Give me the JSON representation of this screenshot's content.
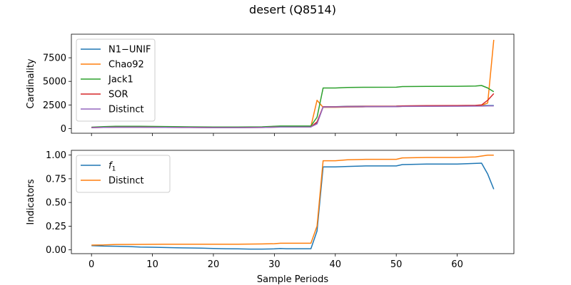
{
  "figure": {
    "title": "desert (Q8514)",
    "xlabel": "Sample Periods"
  },
  "chart_data": [
    {
      "type": "line",
      "ylabel": "Cardinality",
      "xlim": [
        -3.3,
        69.3
      ],
      "ylim": [
        -500,
        10000
      ],
      "xticks": [
        0,
        10,
        20,
        30,
        40,
        50,
        60
      ],
      "yticks": [
        0,
        2500,
        5000,
        7500
      ],
      "ytick_labels": [
        "0",
        "2500",
        "5000",
        "7500"
      ],
      "show_xtick_labels": false,
      "legend_position": "upper-left",
      "series": [
        {
          "name": "N1−UNIF",
          "color": "#1f77b4",
          "x": [
            0,
            2,
            4,
            8,
            12,
            16,
            20,
            24,
            28,
            31,
            36,
            37,
            38,
            40,
            42,
            45,
            50,
            51,
            55,
            60,
            64,
            65,
            66
          ],
          "y": [
            110,
            135,
            150,
            150,
            140,
            120,
            110,
            110,
            120,
            175,
            180,
            600,
            2300,
            2320,
            2350,
            2360,
            2370,
            2390,
            2400,
            2420,
            2440,
            2440,
            2440
          ]
        },
        {
          "name": "Chao92",
          "color": "#ff7f0e",
          "x": [
            0,
            2,
            4,
            8,
            12,
            16,
            20,
            24,
            28,
            31,
            36,
            37,
            38,
            40,
            42,
            45,
            50,
            51,
            55,
            60,
            63,
            64,
            65,
            66
          ],
          "y": [
            120,
            150,
            175,
            175,
            165,
            140,
            130,
            130,
            140,
            215,
            220,
            3000,
            2250,
            2250,
            2280,
            2300,
            2320,
            2350,
            2370,
            2390,
            2400,
            2450,
            2700,
            9400
          ]
        },
        {
          "name": "Jack1",
          "color": "#2ca02c",
          "x": [
            0,
            2,
            4,
            8,
            12,
            16,
            20,
            24,
            28,
            31,
            36,
            37,
            38,
            40,
            42,
            45,
            50,
            51,
            55,
            60,
            63,
            64,
            65,
            66
          ],
          "y": [
            140,
            200,
            230,
            230,
            210,
            180,
            160,
            160,
            180,
            260,
            270,
            1200,
            4300,
            4300,
            4350,
            4370,
            4380,
            4450,
            4470,
            4480,
            4500,
            4560,
            4300,
            3900
          ]
        },
        {
          "name": "SOR",
          "color": "#d62728",
          "x": [
            0,
            2,
            4,
            8,
            12,
            16,
            20,
            24,
            28,
            31,
            36,
            37,
            38,
            40,
            42,
            45,
            50,
            51,
            55,
            60,
            63,
            64,
            65,
            66
          ],
          "y": [
            100,
            130,
            140,
            140,
            130,
            110,
            100,
            100,
            110,
            165,
            170,
            700,
            2300,
            2300,
            2330,
            2350,
            2360,
            2400,
            2420,
            2440,
            2450,
            2500,
            3000,
            3700
          ]
        },
        {
          "name": "Distinct",
          "color": "#9467bd",
          "x": [
            0,
            2,
            4,
            8,
            12,
            16,
            20,
            24,
            28,
            31,
            36,
            37,
            38,
            40,
            42,
            45,
            50,
            51,
            55,
            60,
            64,
            65,
            66
          ],
          "y": [
            100,
            130,
            140,
            140,
            130,
            110,
            100,
            100,
            110,
            165,
            170,
            500,
            2280,
            2290,
            2300,
            2310,
            2320,
            2340,
            2350,
            2360,
            2380,
            2400,
            2400
          ]
        }
      ]
    },
    {
      "type": "line",
      "ylabel": "Indicators",
      "xlim": [
        -3.3,
        69.3
      ],
      "ylim": [
        -0.04,
        1.05
      ],
      "xticks": [
        0,
        10,
        20,
        30,
        40,
        50,
        60
      ],
      "xtick_labels": [
        "0",
        "10",
        "20",
        "30",
        "40",
        "50",
        "60"
      ],
      "yticks": [
        0.0,
        0.25,
        0.5,
        0.75,
        1.0
      ],
      "ytick_labels": [
        "0.00",
        "0.25",
        "0.50",
        "0.75",
        "1.00"
      ],
      "legend_position": "upper-left",
      "series": [
        {
          "name": "f1",
          "label_base": "f",
          "label_sub": "1",
          "color": "#1f77b4",
          "x": [
            0,
            2,
            4,
            6,
            8,
            10,
            12,
            14,
            16,
            18,
            20,
            22,
            24,
            26,
            28,
            30,
            31,
            32,
            34,
            36,
            37,
            38,
            40,
            42,
            45,
            50,
            51,
            55,
            60,
            62,
            64,
            65,
            66
          ],
          "y": [
            0.045,
            0.04,
            0.038,
            0.035,
            0.03,
            0.028,
            0.025,
            0.022,
            0.02,
            0.018,
            0.015,
            0.012,
            0.01,
            0.008,
            0.008,
            0.01,
            0.015,
            0.012,
            0.012,
            0.012,
            0.2,
            0.875,
            0.875,
            0.88,
            0.885,
            0.885,
            0.9,
            0.905,
            0.905,
            0.91,
            0.915,
            0.8,
            0.64
          ]
        },
        {
          "name": "Distinct",
          "color": "#ff7f0e",
          "x": [
            0,
            2,
            4,
            8,
            12,
            16,
            20,
            24,
            28,
            30,
            31,
            32,
            36,
            37,
            38,
            40,
            42,
            45,
            50,
            51,
            55,
            60,
            63,
            64,
            65,
            66
          ],
          "y": [
            0.05,
            0.052,
            0.057,
            0.058,
            0.06,
            0.06,
            0.06,
            0.06,
            0.062,
            0.065,
            0.07,
            0.07,
            0.07,
            0.25,
            0.94,
            0.94,
            0.95,
            0.955,
            0.955,
            0.97,
            0.975,
            0.975,
            0.98,
            0.99,
            1.0,
            1.0
          ]
        }
      ]
    }
  ]
}
